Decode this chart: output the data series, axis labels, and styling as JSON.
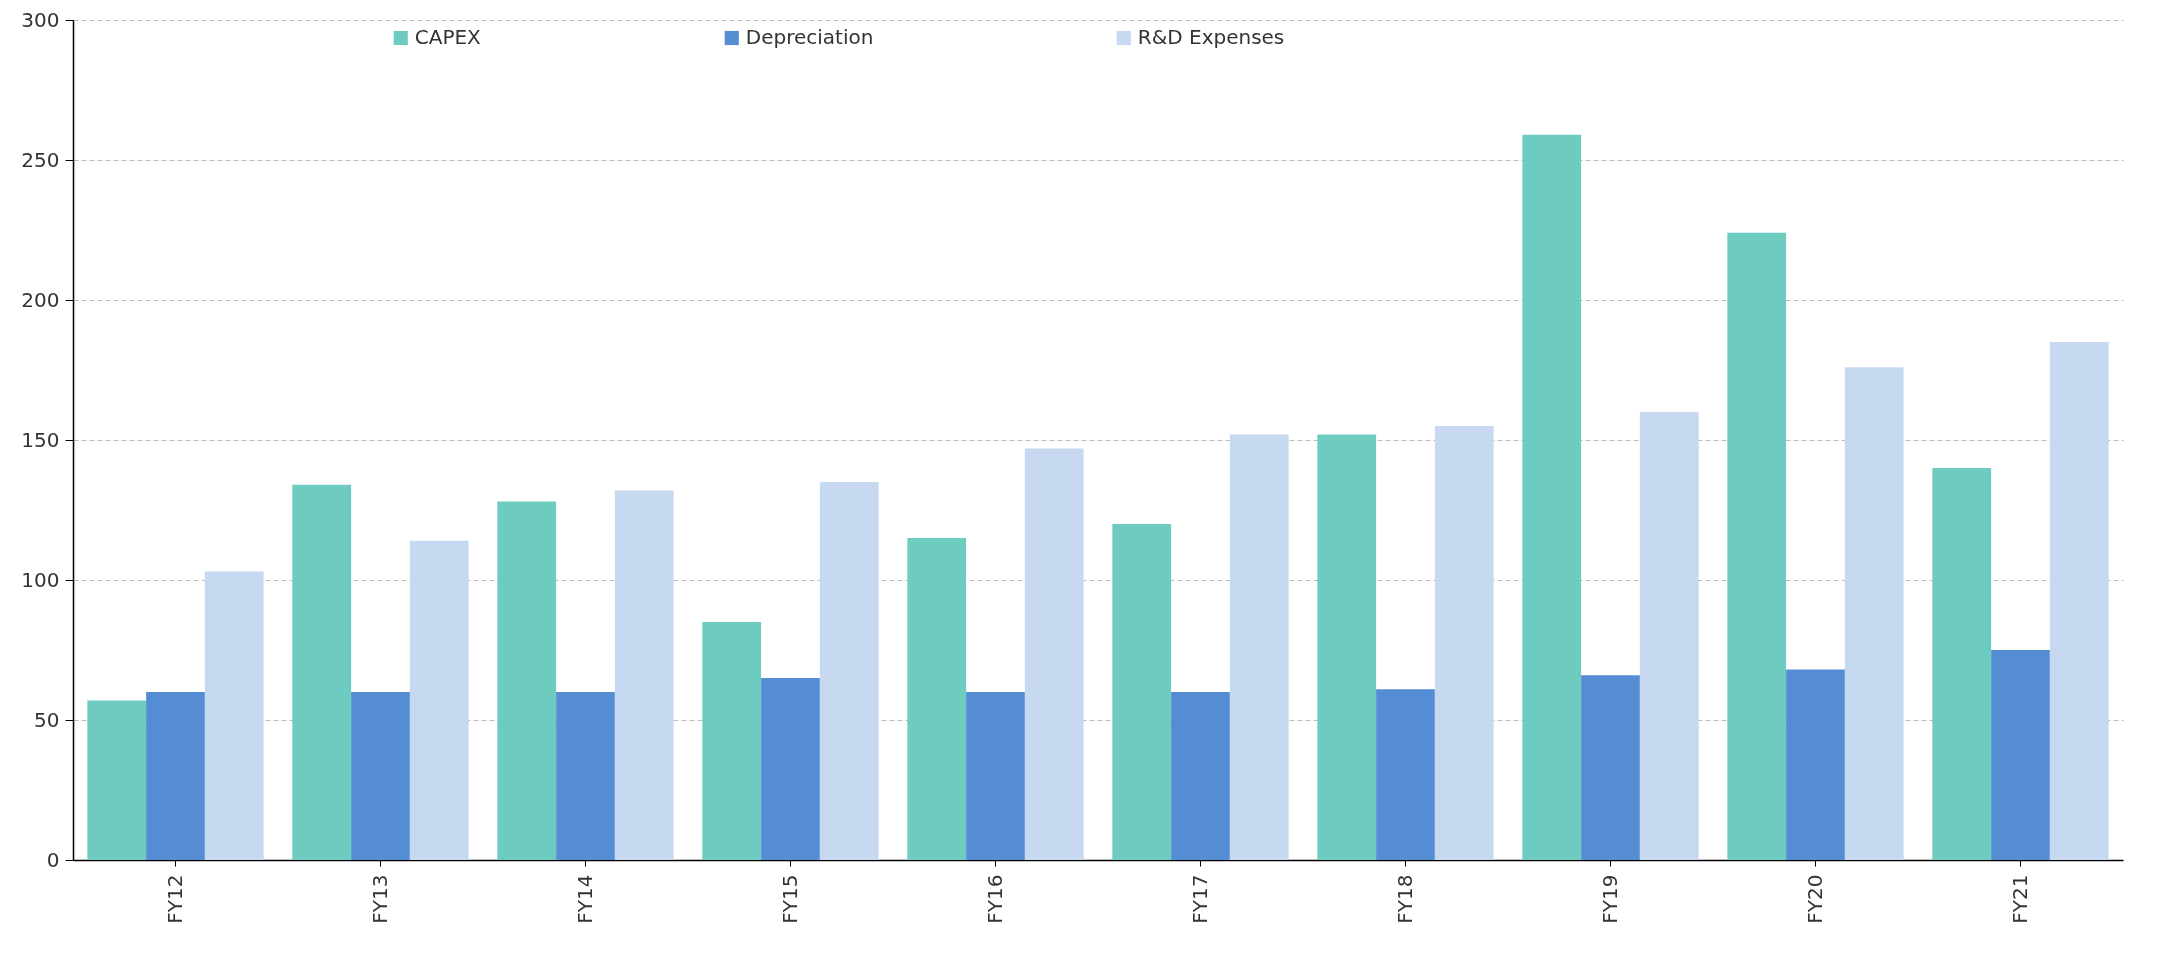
{
  "chart_data": {
    "type": "bar",
    "categories": [
      "FY12",
      "FY13",
      "FY14",
      "FY15",
      "FY16",
      "FY17",
      "FY18",
      "FY19",
      "FY20",
      "FY21"
    ],
    "series": [
      {
        "name": "CAPEX",
        "color": "#6ecbbf",
        "values": [
          57,
          134,
          128,
          85,
          115,
          120,
          152,
          259,
          224,
          140
        ]
      },
      {
        "name": "Depreciation",
        "color": "#548dd4",
        "values": [
          60,
          60,
          60,
          65,
          60,
          60,
          61,
          66,
          68,
          75
        ]
      },
      {
        "name": "R&D Expenses",
        "color": "#c6d9f0",
        "values": [
          103,
          114,
          132,
          135,
          147,
          152,
          155,
          160,
          176,
          185
        ]
      }
    ],
    "ylim": [
      0,
      300
    ],
    "yticks": [
      0,
      50,
      100,
      150,
      200,
      250,
      300
    ],
    "grid": "y",
    "legend": "top"
  }
}
